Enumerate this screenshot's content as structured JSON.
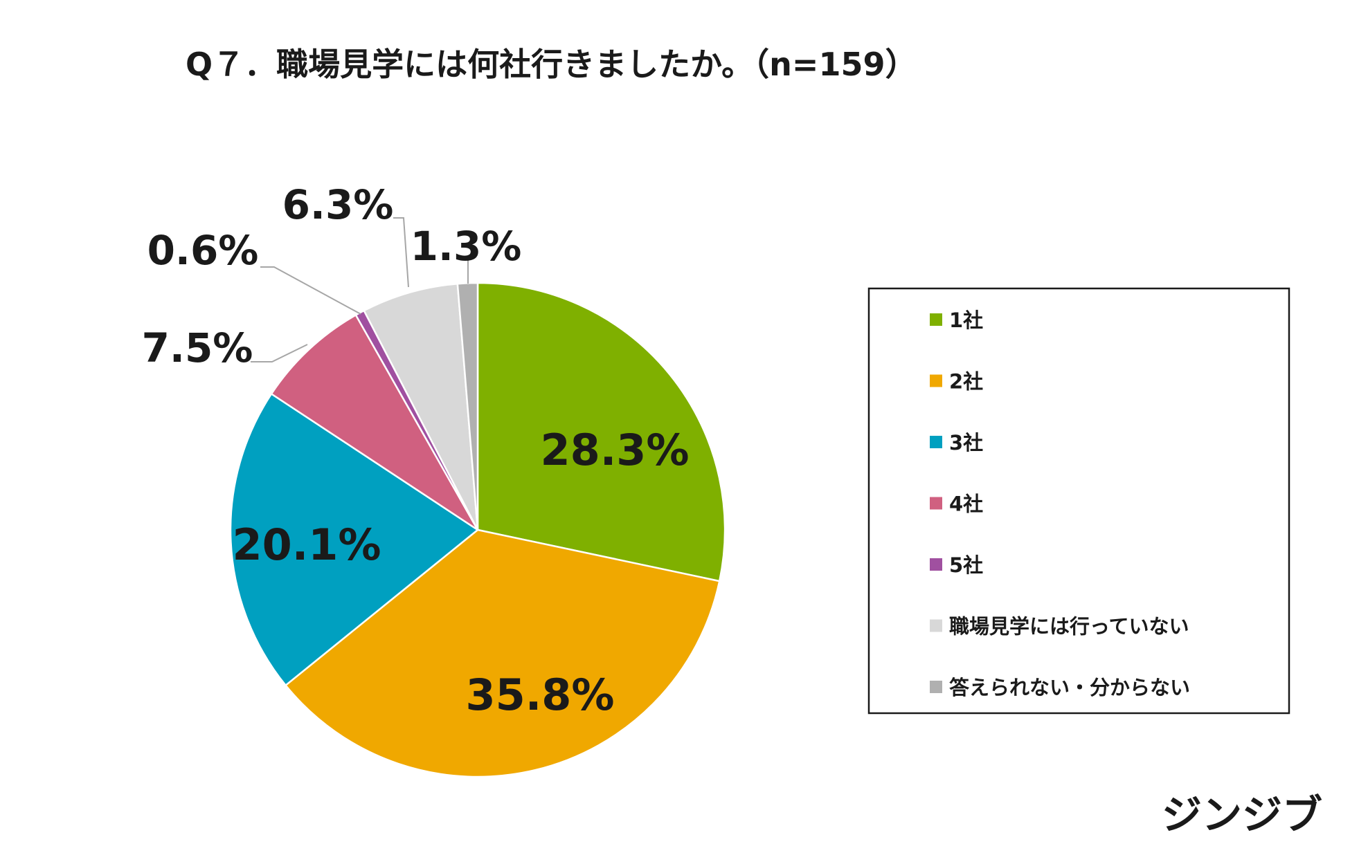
{
  "title": "Q７．職場見学には何社行きましたか。（n=159）",
  "brand": "ジンジブ",
  "chart_data": {
    "type": "pie",
    "title": "Q７．職場見学には何社行きましたか。（n=159）",
    "n": 159,
    "start": "12 o'clock",
    "direction": "clockwise",
    "legend_position": "right",
    "slices": [
      {
        "name": "1社",
        "value": 28.3,
        "label": "28.3%",
        "color": "#7fb000",
        "label_position": "inside"
      },
      {
        "name": "2社",
        "value": 35.8,
        "label": "35.8%",
        "color": "#f0a800",
        "label_position": "inside"
      },
      {
        "name": "3社",
        "value": 20.1,
        "label": "20.1%",
        "color": "#00a0c0",
        "label_position": "inside"
      },
      {
        "name": "4社",
        "value": 7.5,
        "label": "7.5%",
        "color": "#d06080",
        "label_position": "outside"
      },
      {
        "name": "5社",
        "value": 0.6,
        "label": "0.6%",
        "color": "#a050a0",
        "label_position": "outside"
      },
      {
        "name": "職場見学には行っていない",
        "value": 6.3,
        "label": "6.3%",
        "color": "#d8d8d8",
        "label_position": "outside"
      },
      {
        "name": "答えられない・分からない",
        "value": 1.3,
        "label": "1.3%",
        "color": "#b0b0b0",
        "label_position": "outside"
      }
    ]
  }
}
